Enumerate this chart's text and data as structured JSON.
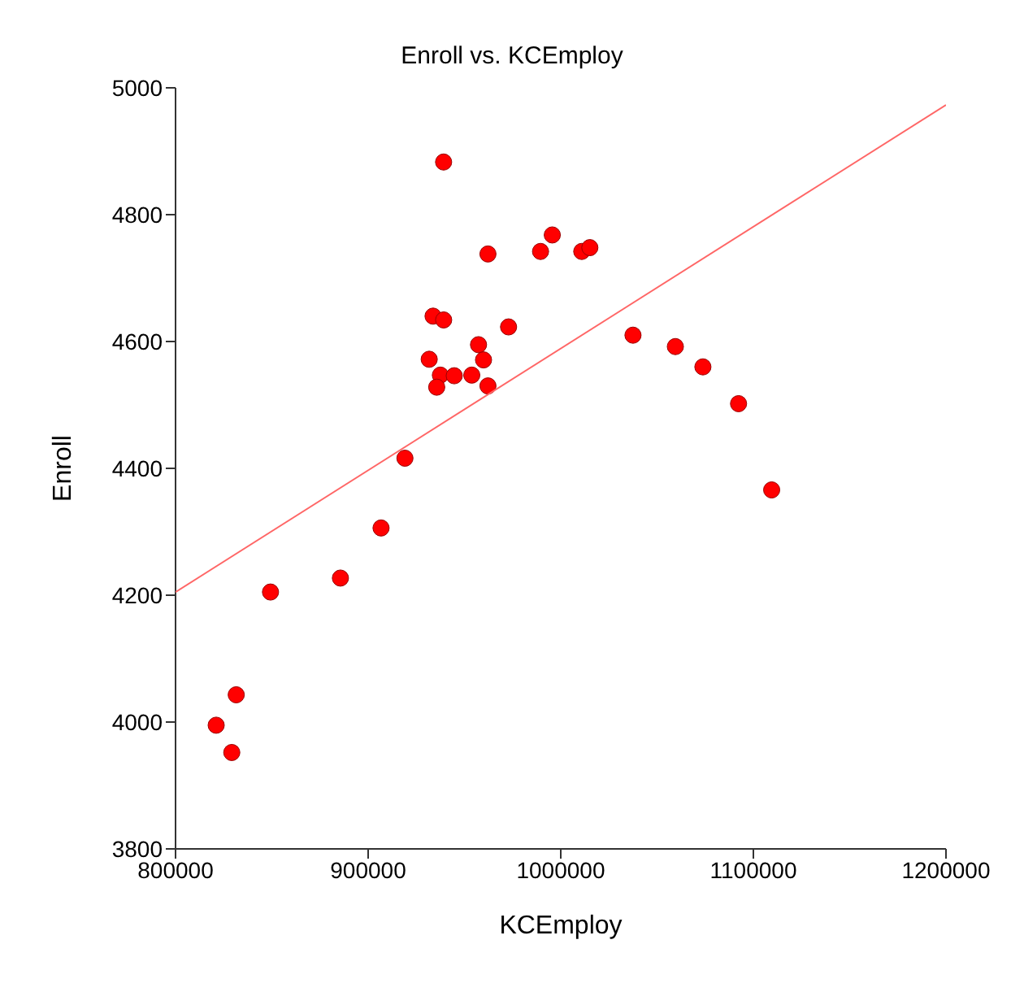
{
  "chart_data": {
    "type": "scatter",
    "title": "Enroll vs. KCEmploy",
    "xlabel": "KCEmploy",
    "ylabel": "Enroll",
    "xlim": [
      800000,
      1200000
    ],
    "xticks": [
      800000,
      900000,
      1000000,
      1100000,
      1200000
    ],
    "ylim": [
      3800,
      5000
    ],
    "yticks": [
      3800,
      4000,
      4200,
      4400,
      4600,
      4800,
      5000
    ],
    "grid": false,
    "legend": false,
    "marker": "circle",
    "series": [
      {
        "color": "#ff0000",
        "x": [
          939170,
          995600,
          989500,
          962200,
          1010900,
          1015100,
          933700,
          939200,
          972900,
          1037500,
          1059500,
          957300,
          931700,
          959900,
          1073800,
          937500,
          944700,
          953800,
          935600,
          962200,
          1092300,
          919100,
          1109500,
          906700,
          885600,
          849300,
          831500,
          821100,
          829200
        ],
        "values": [
          4883,
          4768,
          4742,
          4738,
          4742,
          4748,
          4640,
          4634,
          4623,
          4610,
          4592,
          4595,
          4572,
          4571,
          4560,
          4547,
          4546,
          4547,
          4528,
          4530,
          4502,
          4416,
          4366,
          4306,
          4227,
          4205,
          4043,
          3995,
          3952
        ]
      },
      {
        "type": "line",
        "marker": "none",
        "color": "#ff6666",
        "x": [
          800000,
          1200000
        ],
        "values": [
          4205,
          4973
        ]
      }
    ]
  }
}
